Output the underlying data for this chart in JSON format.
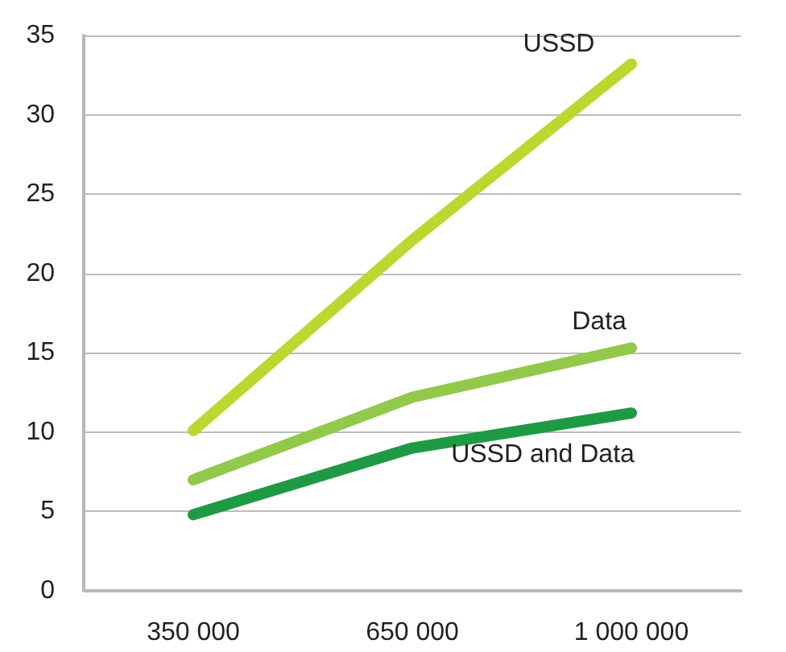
{
  "chart_data": {
    "type": "line",
    "categories": [
      "350 000",
      "650 000",
      "1 000 000"
    ],
    "series": [
      {
        "name": "USSD",
        "color": "#bed630",
        "values": [
          10.1,
          22.1,
          33.2
        ]
      },
      {
        "name": "Data",
        "color": "#92c94a",
        "values": [
          7.0,
          12.2,
          15.3
        ]
      },
      {
        "name": "USSD and Data",
        "color": "#1f9a44",
        "values": [
          4.8,
          9.0,
          11.2
        ]
      }
    ],
    "ylim": [
      0,
      35
    ],
    "yticks": [
      0,
      5,
      10,
      15,
      20,
      25,
      30,
      35
    ],
    "grid": "y",
    "legend": false,
    "line_style": "solid"
  }
}
